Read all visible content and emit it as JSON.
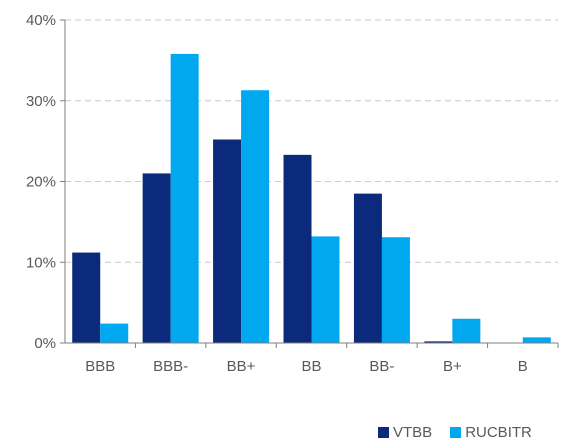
{
  "chart_data": {
    "type": "bar",
    "categories": [
      "BBB",
      "BBB-",
      "BB+",
      "BB",
      "BB-",
      "B+",
      "B"
    ],
    "series": [
      {
        "name": "VTBB",
        "color": "#0b2a7c",
        "values": [
          11.2,
          21.0,
          25.2,
          23.3,
          18.5,
          0.2,
          0.0
        ]
      },
      {
        "name": "RUCBITR",
        "color": "#00a8f0",
        "values": [
          2.4,
          35.8,
          31.3,
          13.2,
          13.1,
          3.0,
          0.7
        ]
      }
    ],
    "ylim": [
      0,
      40
    ],
    "yticks": [
      "0%",
      "10%",
      "20%",
      "30%",
      "40%"
    ],
    "ytick_values": [
      0,
      10,
      20,
      30,
      40
    ],
    "grid": true,
    "legend_position": "bottom-right",
    "title": "",
    "xlabel": "",
    "ylabel": ""
  }
}
